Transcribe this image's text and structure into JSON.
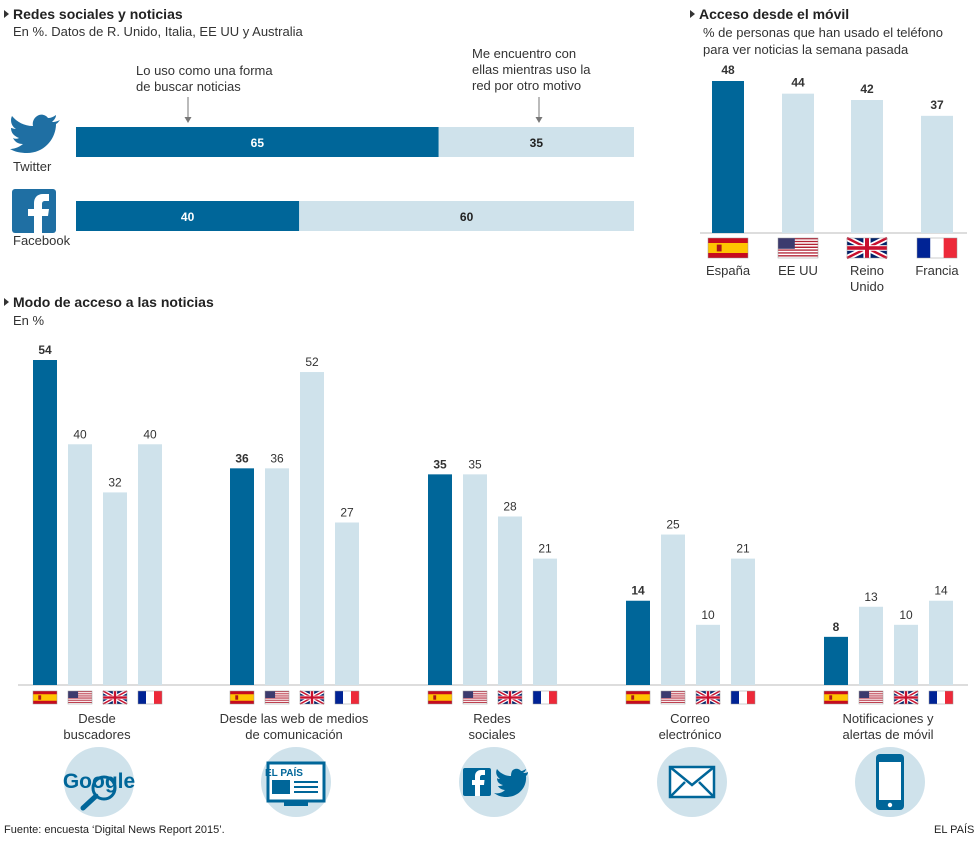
{
  "colors": {
    "dark": "#006699",
    "light": "#cfe2eb",
    "text": "#333333",
    "arrow": "#777777"
  },
  "social": {
    "title": "Redes sociales y noticias",
    "subtitle": "En %. Datos de R. Unido, Italia, EE UU y Australia",
    "note_search": [
      "Lo uso como una forma",
      "de buscar noticias"
    ],
    "note_other": [
      "Me encuentro con",
      "ellas mientras uso la",
      "red por otro motivo"
    ],
    "rows": [
      {
        "label": "Twitter",
        "icon": "twitter-icon",
        "search": 65,
        "other": 35
      },
      {
        "label": "Facebook",
        "icon": "facebook-icon",
        "search": 40,
        "other": 60
      }
    ]
  },
  "mobile": {
    "title": "Acceso desde el móvil",
    "subtitle": [
      "% de personas que han usado el teléfono",
      "para ver noticias la semana pasada"
    ]
  },
  "modes": {
    "title": "Modo de acceso a las noticias",
    "subtitle": "En %"
  },
  "chart_data": [
    {
      "type": "bar",
      "title": "Acceso desde el móvil",
      "categories": [
        "España",
        "EE UU",
        "Reino Unido",
        "Francia"
      ],
      "category_lines": [
        [
          "España"
        ],
        [
          "EE UU"
        ],
        [
          "Reino",
          "Unido"
        ],
        [
          "Francia"
        ]
      ],
      "flags": [
        "spain",
        "usa",
        "uk",
        "france"
      ],
      "values": [
        48,
        44,
        42,
        37
      ],
      "highlight_index": 0,
      "ylim": [
        0,
        50
      ]
    },
    {
      "type": "bar",
      "title": "Modo de acceso a las noticias",
      "ylabel": "En %",
      "countries": [
        "España",
        "EE UU",
        "Reino Unido",
        "Francia"
      ],
      "flags": [
        "spain",
        "usa",
        "uk",
        "france"
      ],
      "categories": [
        "Desde buscadores",
        "Desde las web de medios de comunicación",
        "Redes sociales",
        "Correo electrónico",
        "Notificaciones y alertas de móvil"
      ],
      "category_lines": [
        [
          "Desde",
          "buscadores"
        ],
        [
          "Desde las web de medios",
          "de comunicación"
        ],
        [
          "Redes",
          "sociales"
        ],
        [
          "Correo",
          "electrónico"
        ],
        [
          "Notificaciones y",
          "alertas de móvil"
        ]
      ],
      "group_icons": [
        "google-search-icon",
        "newspaper-web-icon",
        "social-networks-icon",
        "email-icon",
        "smartphone-icon"
      ],
      "icon_texts": {
        "google": "Google",
        "paper": "EL PAÍS"
      },
      "series": [
        {
          "name": "España",
          "values": [
            54,
            36,
            35,
            14,
            8
          ]
        },
        {
          "name": "EE UU",
          "values": [
            40,
            36,
            35,
            25,
            13
          ]
        },
        {
          "name": "Reino Unido",
          "values": [
            32,
            52,
            28,
            10,
            10
          ]
        },
        {
          "name": "Francia",
          "values": [
            40,
            27,
            21,
            21,
            14
          ]
        }
      ],
      "ylim": [
        0,
        55
      ]
    },
    {
      "type": "bar",
      "title": "Redes sociales y noticias",
      "categories": [
        "Twitter",
        "Facebook"
      ],
      "series": [
        {
          "name": "Lo uso como una forma de buscar noticias",
          "values": [
            65,
            40
          ]
        },
        {
          "name": "Me encuentro con ellas mientras uso la red por otro motivo",
          "values": [
            35,
            60
          ]
        }
      ],
      "stacked": true,
      "orientation": "horizontal",
      "xlim": [
        0,
        100
      ]
    }
  ],
  "footer": {
    "source": "Fuente: encuesta ‘Digital News Report 2015’.",
    "brand": "EL PAÍS"
  }
}
